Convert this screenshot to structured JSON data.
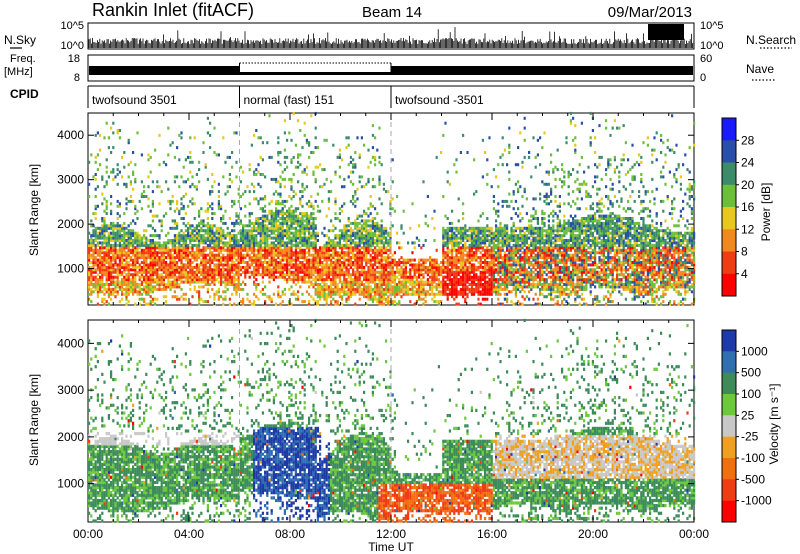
{
  "header": {
    "station": "Rankin Inlet (fitACF)",
    "beam": "Beam 14",
    "date": "09/Mar/2013"
  },
  "top_panels": {
    "nsky_label": "N.Sky",
    "nsky_ticks": [
      "10^5",
      "10^0"
    ],
    "nsearch_label": "N.Search",
    "nsearch_ticks": [
      "10^5",
      "10^0"
    ],
    "freq_label_1": "Freq.",
    "freq_label_2": "[MHz]",
    "freq_ticks": [
      "18",
      "8"
    ],
    "nave_label": "Nave",
    "nave_ticks": [
      "60",
      "0"
    ],
    "cpid_label": "CPID",
    "cpid_segments": [
      {
        "label": "twofsound 3501",
        "start_hour": 0,
        "end_hour": 6
      },
      {
        "label": "normal (fast) 151",
        "start_hour": 6,
        "end_hour": 12
      },
      {
        "label": "twofsound -3501",
        "start_hour": 12,
        "end_hour": 24
      }
    ]
  },
  "chart_data": [
    {
      "type": "heatmap",
      "ylabel": "Slant Range [km]",
      "yticks": [
        "1000",
        "2000",
        "3000",
        "4000"
      ],
      "ylim": [
        180,
        4500
      ],
      "xlim": [
        0,
        24
      ],
      "colorbar_label": "Power [dB]",
      "colorbar_ticks": [
        "4",
        "8",
        "12",
        "16",
        "20",
        "24",
        "28"
      ],
      "colorbar_colors": [
        "#1a1aff",
        "#2a4fa8",
        "#3c8c6a",
        "#6cbf3a",
        "#e8c81e",
        "#f08a1e",
        "#f03c14",
        "#ff0000"
      ]
    },
    {
      "type": "heatmap",
      "ylabel": "Slant Range [km]",
      "yticks": [
        "1000",
        "2000",
        "3000",
        "4000"
      ],
      "ylim": [
        180,
        4500
      ],
      "xlim": [
        0,
        24
      ],
      "xlabel": "Time UT",
      "xticks": [
        "00:00",
        "04:00",
        "08:00",
        "12:00",
        "16:00",
        "20:00",
        "00:00"
      ],
      "colorbar_label": "Velocity [m s⁻¹]",
      "colorbar_ticks": [
        "1000",
        "500",
        "100",
        "25",
        "-25",
        "-100",
        "-500",
        "-1000"
      ],
      "colorbar_colors": [
        "#1e3aa8",
        "#2f6fb0",
        "#3c8c5a",
        "#6cc83c",
        "#c8c8c8",
        "#f0a020",
        "#f07010",
        "#f03c14",
        "#ff0000"
      ]
    }
  ]
}
